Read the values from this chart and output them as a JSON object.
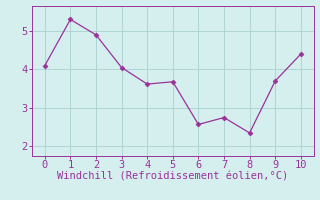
{
  "x": [
    0,
    1,
    2,
    3,
    4,
    5,
    6,
    7,
    8,
    9,
    10
  ],
  "y": [
    4.1,
    5.3,
    4.9,
    4.05,
    3.62,
    3.68,
    2.57,
    2.75,
    2.35,
    3.7,
    4.4
  ],
  "line_color": "#993399",
  "marker": "D",
  "marker_size": 2.5,
  "xlabel": "Windchill (Refroidissement éolien,°C)",
  "xlim": [
    -0.5,
    10.5
  ],
  "ylim": [
    1.75,
    5.65
  ],
  "yticks": [
    2,
    3,
    4,
    5
  ],
  "xticks": [
    0,
    1,
    2,
    3,
    4,
    5,
    6,
    7,
    8,
    9,
    10
  ],
  "grid_color": "#aacfcf",
  "bg_color": "#d5efef",
  "xlabel_fontsize": 7.5,
  "tick_fontsize": 7.5,
  "line_width": 0.9
}
